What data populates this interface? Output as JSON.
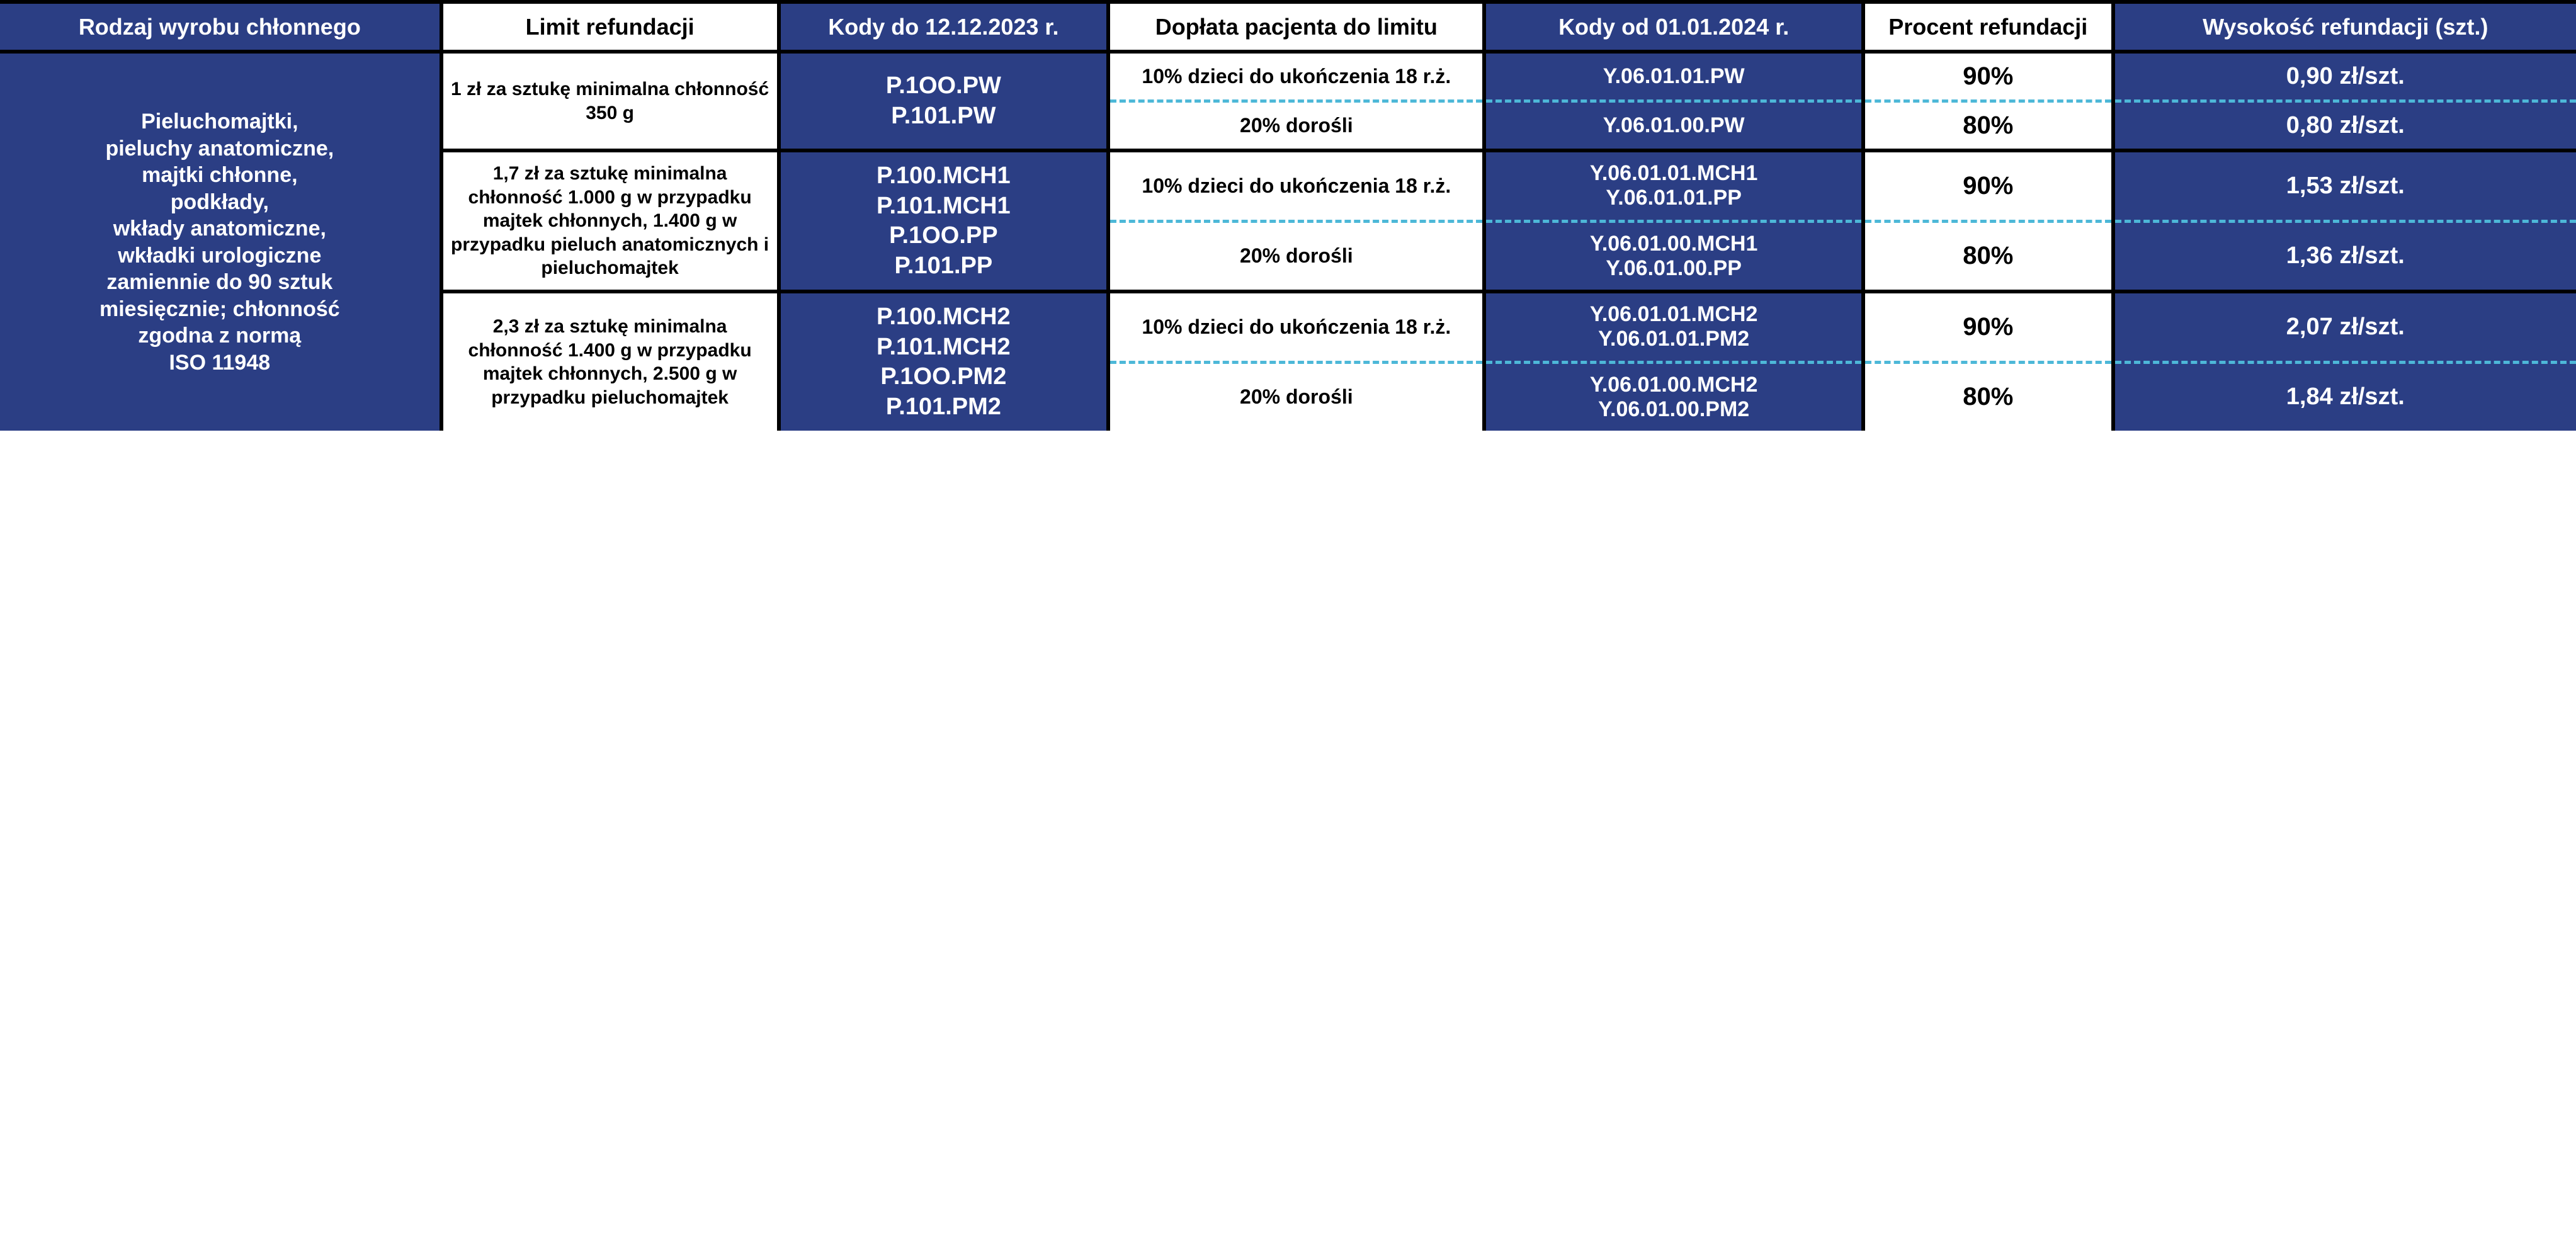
{
  "colors": {
    "blue": "#2b3e84",
    "white": "#ffffff",
    "black": "#000000",
    "dash": "#4db8d8"
  },
  "headers": {
    "c0": "Rodzaj wyrobu chłonnego",
    "c1": "Limit refundacji",
    "c2": "Kody do 12.12.2023 r.",
    "c3": "Dopłata pacjenta do limitu",
    "c4": "Kody od 01.01.2024 r.",
    "c5": "Procent refundacji",
    "c6": "Wysokość refundacji (szt.)"
  },
  "rowlabel": "Pieluchomajtki,\npieluchy anatomiczne,\nmajtki chłonne,\npodkłady,\nwkłady anatomiczne,\nwkładki urologiczne\nzamiennie do 90 sztuk\nmiesięcznie; chłonność\nzgodna z normą\nISO 11948",
  "group1": {
    "limit": "1 zł za sztukę minimalna chłonność 350 g",
    "codes_old": "P.1OO.PW\nP.101.PW",
    "sub1": {
      "doplata": "10% dzieci do ukończenia 18 r.ż.",
      "codes_new": "Y.06.01.01.PW",
      "pct": "90%",
      "amt": "0,90 zł/szt."
    },
    "sub2": {
      "doplata": "20% dorośli",
      "codes_new": "Y.06.01.00.PW",
      "pct": "80%",
      "amt": "0,80 zł/szt."
    }
  },
  "group2": {
    "limit": "1,7 zł za sztukę minimalna chłonność 1.000 g w przypadku majtek chłonnych, 1.400 g w przypadku pieluch anatomicznych i pieluchomajtek",
    "codes_old": "P.100.MCH1\nP.101.MCH1\nP.1OO.PP\nP.101.PP",
    "sub1": {
      "doplata": "10% dzieci do ukończenia 18 r.ż.",
      "codes_new": "Y.06.01.01.MCH1\nY.06.01.01.PP",
      "pct": "90%",
      "amt": "1,53 zł/szt."
    },
    "sub2": {
      "doplata": "20% dorośli",
      "codes_new": "Y.06.01.00.MCH1\nY.06.01.00.PP",
      "pct": "80%",
      "amt": "1,36 zł/szt."
    }
  },
  "group3": {
    "limit": "2,3 zł za sztukę minimalna chłonność 1.400 g w przypadku majtek chłonnych, 2.500 g w przypadku pieluchomajtek",
    "codes_old": "P.100.MCH2\nP.101.MCH2\nP.1OO.PM2\nP.101.PM2",
    "sub1": {
      "doplata": "10% dzieci do ukończenia 18 r.ż.",
      "codes_new": "Y.06.01.01.MCH2\nY.06.01.01.PM2",
      "pct": "90%",
      "amt": "2,07 zł/szt."
    },
    "sub2": {
      "doplata": "20% dorośli",
      "codes_new": "Y.06.01.00.MCH2\nY.06.01.00.PM2",
      "pct": "80%",
      "amt": "1,84 zł/szt."
    }
  },
  "layout": {
    "row_heights": {
      "header": 130,
      "group1": 230,
      "group2": 380,
      "group3": 380
    },
    "font_family": "Segoe UI / Arial",
    "border_width": 6,
    "dash_color": "#4db8d8"
  }
}
